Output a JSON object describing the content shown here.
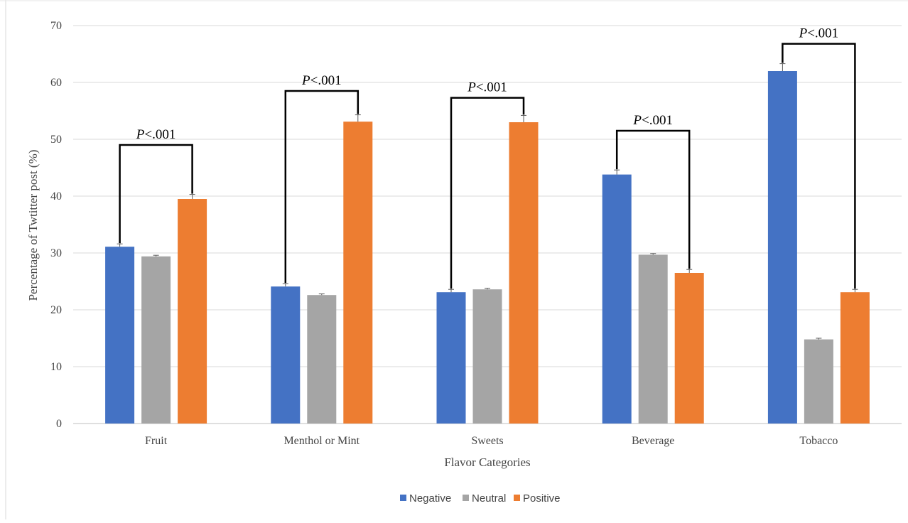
{
  "chart_data": {
    "type": "bar",
    "title": "",
    "xlabel": "Flavor Categories",
    "ylabel": "Percentage of Twtitter post (%)",
    "ylim": [
      0,
      70
    ],
    "yticks": [
      0,
      10,
      20,
      30,
      40,
      50,
      60,
      70
    ],
    "grid": true,
    "legend_position": "bottom",
    "categories": [
      "Fruit",
      "Menthol or Mint",
      "Sweets",
      "Beverage",
      "Tobacco"
    ],
    "series": [
      {
        "name": "Negative",
        "color": "#4472c4",
        "values": [
          31.1,
          24.1,
          23.1,
          43.8,
          62.0
        ],
        "errors": [
          0.5,
          0.5,
          0.5,
          0.8,
          1.3
        ]
      },
      {
        "name": "Neutral",
        "color": "#a5a5a5",
        "values": [
          29.4,
          22.6,
          23.6,
          29.7,
          14.8
        ],
        "errors": [
          0.2,
          0.2,
          0.2,
          0.2,
          0.2
        ]
      },
      {
        "name": "Positive",
        "color": "#ed7d31",
        "values": [
          39.5,
          53.1,
          53.0,
          26.5,
          23.1
        ],
        "errors": [
          0.8,
          1.2,
          1.2,
          0.6,
          0.5
        ]
      }
    ],
    "annotations": [
      {
        "category": "Fruit",
        "from_series": 0,
        "to_series": 2,
        "y": 49.0,
        "p_symbol": "P",
        "p_rest": "<.001"
      },
      {
        "category": "Menthol or Mint",
        "from_series": 0,
        "to_series": 2,
        "y": 58.5,
        "p_symbol": "P",
        "p_rest": "<.001"
      },
      {
        "category": "Sweets",
        "from_series": 0,
        "to_series": 2,
        "y": 57.3,
        "p_symbol": "P",
        "p_rest": "<.001"
      },
      {
        "category": "Beverage",
        "from_series": 0,
        "to_series": 2,
        "y": 51.5,
        "p_symbol": "P",
        "p_rest": "<.001"
      },
      {
        "category": "Tobacco",
        "from_series": 0,
        "to_series": 2,
        "y": 66.8,
        "p_symbol": "P",
        "p_rest": "<.001"
      }
    ]
  }
}
